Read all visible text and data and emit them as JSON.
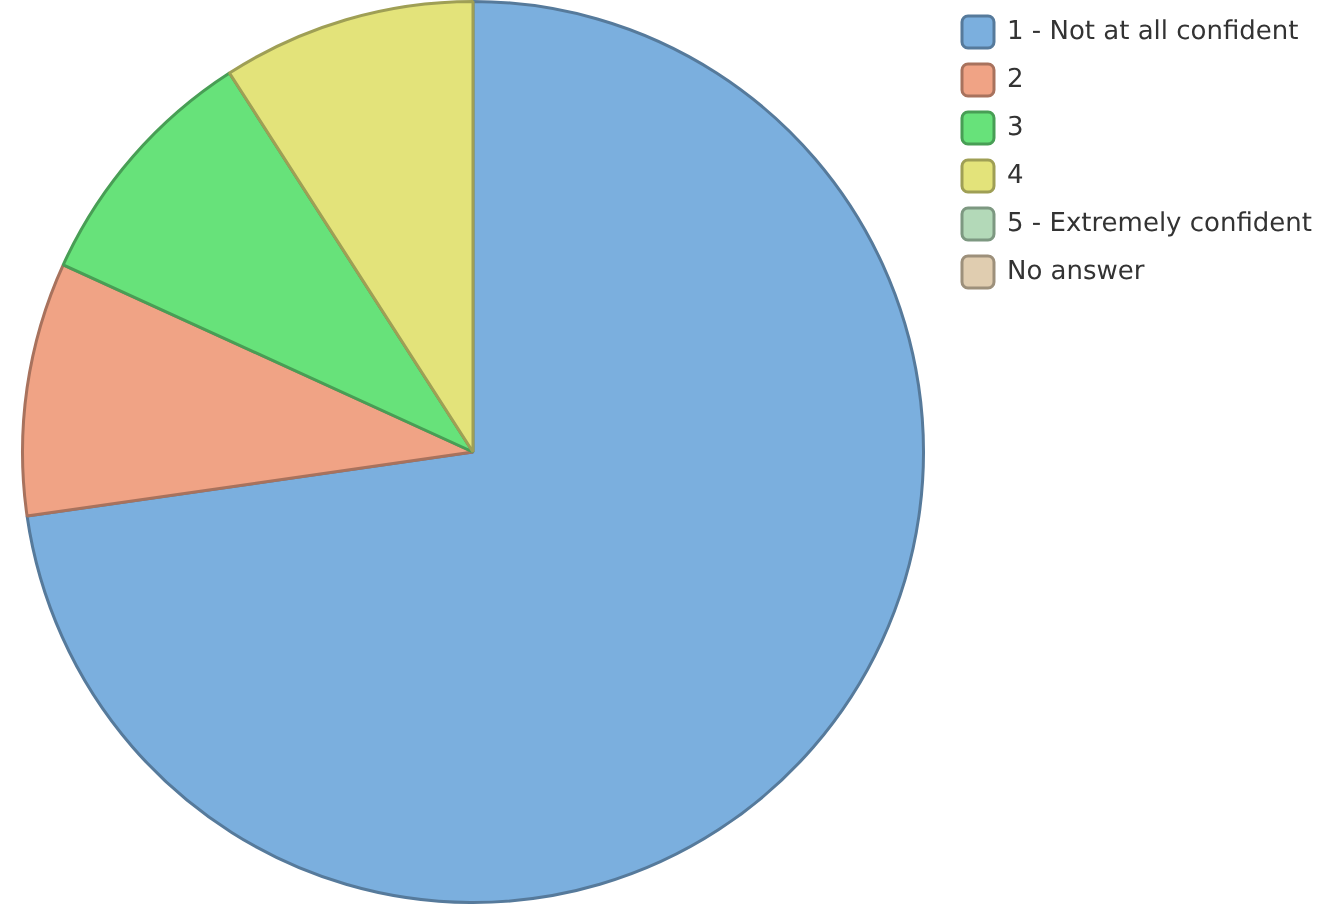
{
  "chart_data": {
    "type": "pie",
    "categories": [
      "1 - Not at all confident",
      "2",
      "3",
      "4",
      "5 - Extremely confident",
      "No answer"
    ],
    "values": [
      72.73,
      9.09,
      9.09,
      9.09,
      0,
      0
    ],
    "colors": [
      "#7bafde",
      "#f0a385",
      "#67e27a",
      "#e3e37a",
      "#b3d9b8",
      "#e0cdb0"
    ],
    "legend": "top right"
  }
}
